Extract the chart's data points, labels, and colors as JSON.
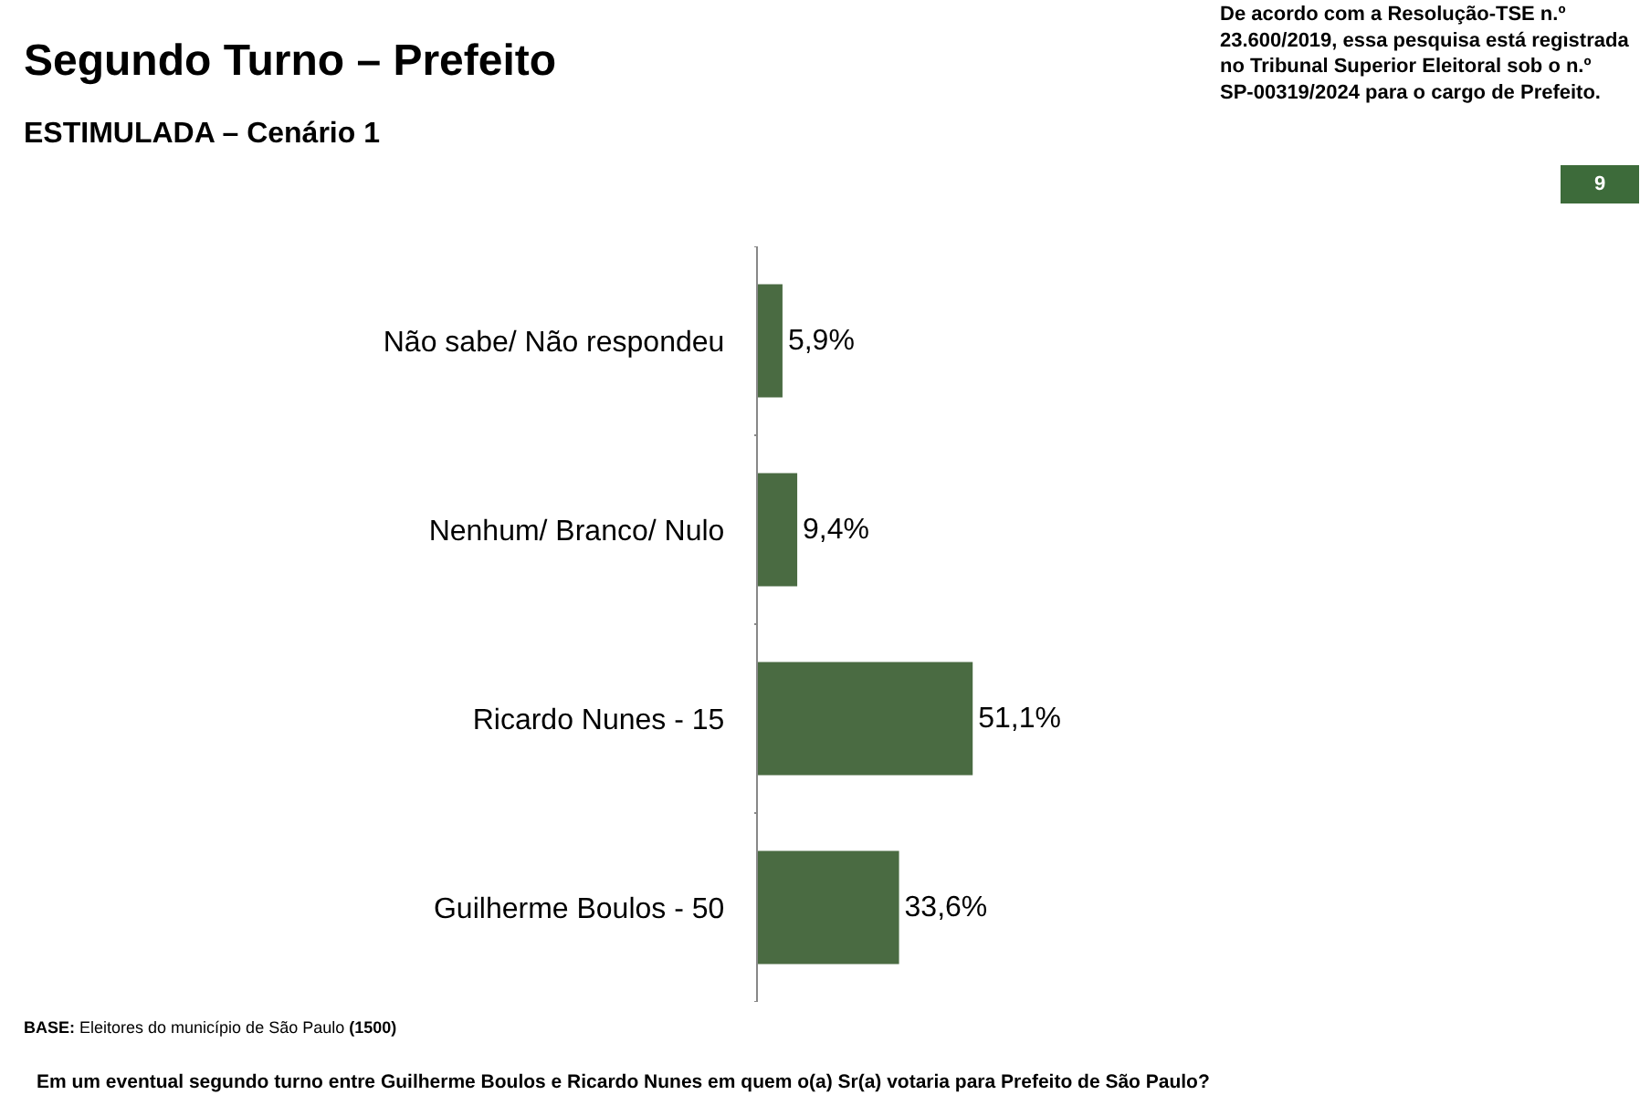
{
  "chart_data": {
    "type": "bar",
    "orientation": "horizontal",
    "title": "Segundo Turno – Prefeito",
    "subtitle": "ESTIMULADA – Cenário 1",
    "categories": [
      "Não sabe/ Não respondeu",
      "Nenhum/ Branco/ Nulo",
      "Ricardo Nunes - 15",
      "Guilherme Boulos - 50"
    ],
    "values": [
      5.9,
      9.4,
      51.1,
      33.6
    ],
    "value_labels": [
      "5,9%",
      "9,4%",
      "51,1%",
      "33,6%"
    ],
    "color": "#4a6b42",
    "legend": false,
    "annotations": [
      "De acordo com a Resolução-TSE n.º 23.600/2019, essa pesquisa está registrada no Tribunal Superior Eleitoral sob o n.º SP-00319/2024 para o cargo de Prefeito.",
      "9",
      "BASE: Eleitores do município de São Paulo (1500)",
      "Em um eventual segundo turno entre Guilherme Boulos e Ricardo Nunes em quem o(a) Sr(a) votaria para Prefeito de São Paulo?"
    ]
  }
}
